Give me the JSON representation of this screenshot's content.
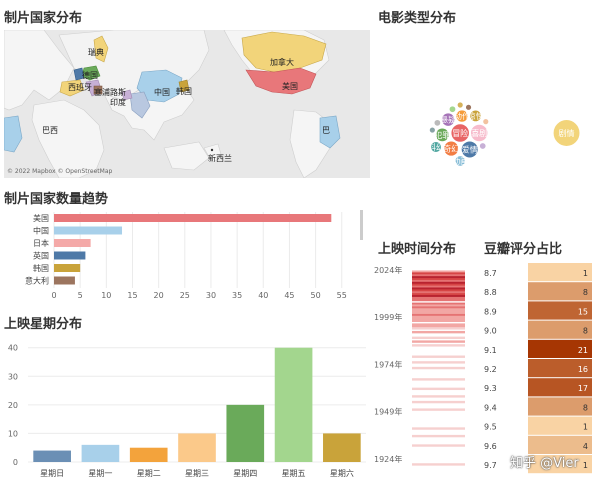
{
  "titles": {
    "map": "制片国家分布",
    "genre": "电影类型分布",
    "country_count": "制片国家数量趋势",
    "weekday": "上映星期分布",
    "release_time": "上映时间分布",
    "rating": "豆瓣评分占比"
  },
  "map": {
    "copyright": "© 2022 Mapbox © OpenStreetMap",
    "labels": [
      "瑞典",
      "德国",
      "西班牙",
      "塞浦路斯",
      "印度",
      "中国",
      "韩国",
      "加拿大",
      "美国",
      "新西兰",
      "巴西",
      "巴"
    ]
  },
  "watermark": "知乎 @Vier",
  "colors": {
    "usa": "#e8777a",
    "china": "#a8d0ea",
    "japan": "#f4a9a8",
    "uk": "#4e79a7",
    "korea": "#c9a33a",
    "italy": "#9c755f"
  },
  "chart_data": [
    {
      "type": "bar",
      "name": "制片国家数量趋势",
      "orientation": "horizontal",
      "categories": [
        "美国",
        "中国",
        "日本",
        "英国",
        "韩国",
        "意大利"
      ],
      "values": [
        53,
        13,
        7,
        6,
        5,
        4
      ],
      "colors": [
        "#e8777a",
        "#a8d0ea",
        "#f4a9a8",
        "#4e79a7",
        "#c9a33a",
        "#9c755f"
      ],
      "xticks": [
        "0",
        "5",
        "10",
        "15",
        "20",
        "25",
        "30",
        "35",
        "40",
        "45",
        "50",
        "55"
      ],
      "xlim": [
        0,
        56
      ]
    },
    {
      "type": "bar",
      "name": "上映星期分布",
      "categories": [
        "星期日",
        "星期一",
        "星期二",
        "星期三",
        "星期四",
        "星期五",
        "星期六"
      ],
      "values": [
        4,
        6,
        5,
        10,
        20,
        40,
        10
      ],
      "colors": [
        "#6b8fb5",
        "#a8d0ea",
        "#f3a33c",
        "#fbc98a",
        "#6aaa5a",
        "#a3d68e",
        "#c9a33a"
      ],
      "yticks": [
        "0",
        "10",
        "20",
        "30",
        "40"
      ],
      "ylim": [
        0,
        42
      ]
    },
    {
      "type": "bubble",
      "name": "电影类型分布",
      "items": [
        {
          "label": "剧情",
          "value": 95,
          "color": "#f2d47a"
        },
        {
          "label": "冒险",
          "value": 45,
          "color": "#e86565"
        },
        {
          "label": "爱情",
          "value": 38,
          "color": "#4e79a7"
        },
        {
          "label": "喜剧",
          "value": 40,
          "color": "#f7bccc"
        },
        {
          "label": "奇幻",
          "value": 30,
          "color": "#f27d44"
        },
        {
          "label": "犯罪",
          "value": 25,
          "color": "#6aaa5a"
        },
        {
          "label": "悬疑",
          "value": 24,
          "color": "#a674b8"
        },
        {
          "label": "动作",
          "value": 20,
          "color": "#f59c3b"
        },
        {
          "label": "科幻",
          "value": 16,
          "color": "#4fa6a0"
        },
        {
          "label": "惊悚",
          "value": 18,
          "color": "#c9a33a"
        },
        {
          "label": "动画",
          "value": 15,
          "color": "#86bcd6"
        },
        {
          "label": "",
          "value": 6,
          "color": "#bbbbbb"
        },
        {
          "label": "",
          "value": 6,
          "color": "#a3d68e"
        },
        {
          "label": "",
          "value": 5,
          "color": "#9c755f"
        },
        {
          "label": "",
          "value": 5,
          "color": "#8aa4a6"
        },
        {
          "label": "",
          "value": 6,
          "color": "#c7b0d6"
        },
        {
          "label": "",
          "value": 5,
          "color": "#d6b25a"
        },
        {
          "label": "",
          "value": 5,
          "color": "#f2c2a0"
        }
      ]
    },
    {
      "type": "heatmap",
      "name": "上映时间分布",
      "yticks": [
        "2024年",
        "1999年",
        "1974年",
        "1949年",
        "1924年"
      ],
      "ylim": [
        1917,
        2026
      ],
      "years": [
        2023,
        2022,
        2021,
        2020,
        2019,
        2018,
        2017,
        2016,
        2015,
        2014,
        2013,
        2012,
        2011,
        2010,
        2009,
        2008,
        2006,
        2005,
        2004,
        2003,
        2002,
        2001,
        2000,
        1999,
        1998,
        1997,
        1995,
        1994,
        1993,
        1991,
        1988,
        1986,
        1984,
        1978,
        1975,
        1972,
        1966,
        1961,
        1957,
        1954,
        1950,
        1940,
        1936,
        1931,
        1921
      ],
      "intensity": [
        2,
        4,
        3,
        5,
        4,
        3,
        5,
        4,
        3,
        5,
        4,
        3,
        4,
        5,
        3,
        3,
        3,
        2,
        3,
        2,
        2,
        2,
        3,
        2,
        2,
        2,
        2,
        2,
        1,
        2,
        1,
        2,
        1,
        1,
        1,
        1,
        1,
        1,
        1,
        1,
        1,
        1,
        1,
        1,
        1
      ]
    },
    {
      "type": "table",
      "name": "豆瓣评分占比",
      "scores": [
        "8.7",
        "8.8",
        "8.9",
        "9.0",
        "9.1",
        "9.2",
        "9.3",
        "9.4",
        "9.5",
        "9.6",
        "9.7"
      ],
      "counts": [
        1,
        8,
        15,
        8,
        21,
        16,
        17,
        8,
        1,
        4,
        1
      ]
    }
  ]
}
